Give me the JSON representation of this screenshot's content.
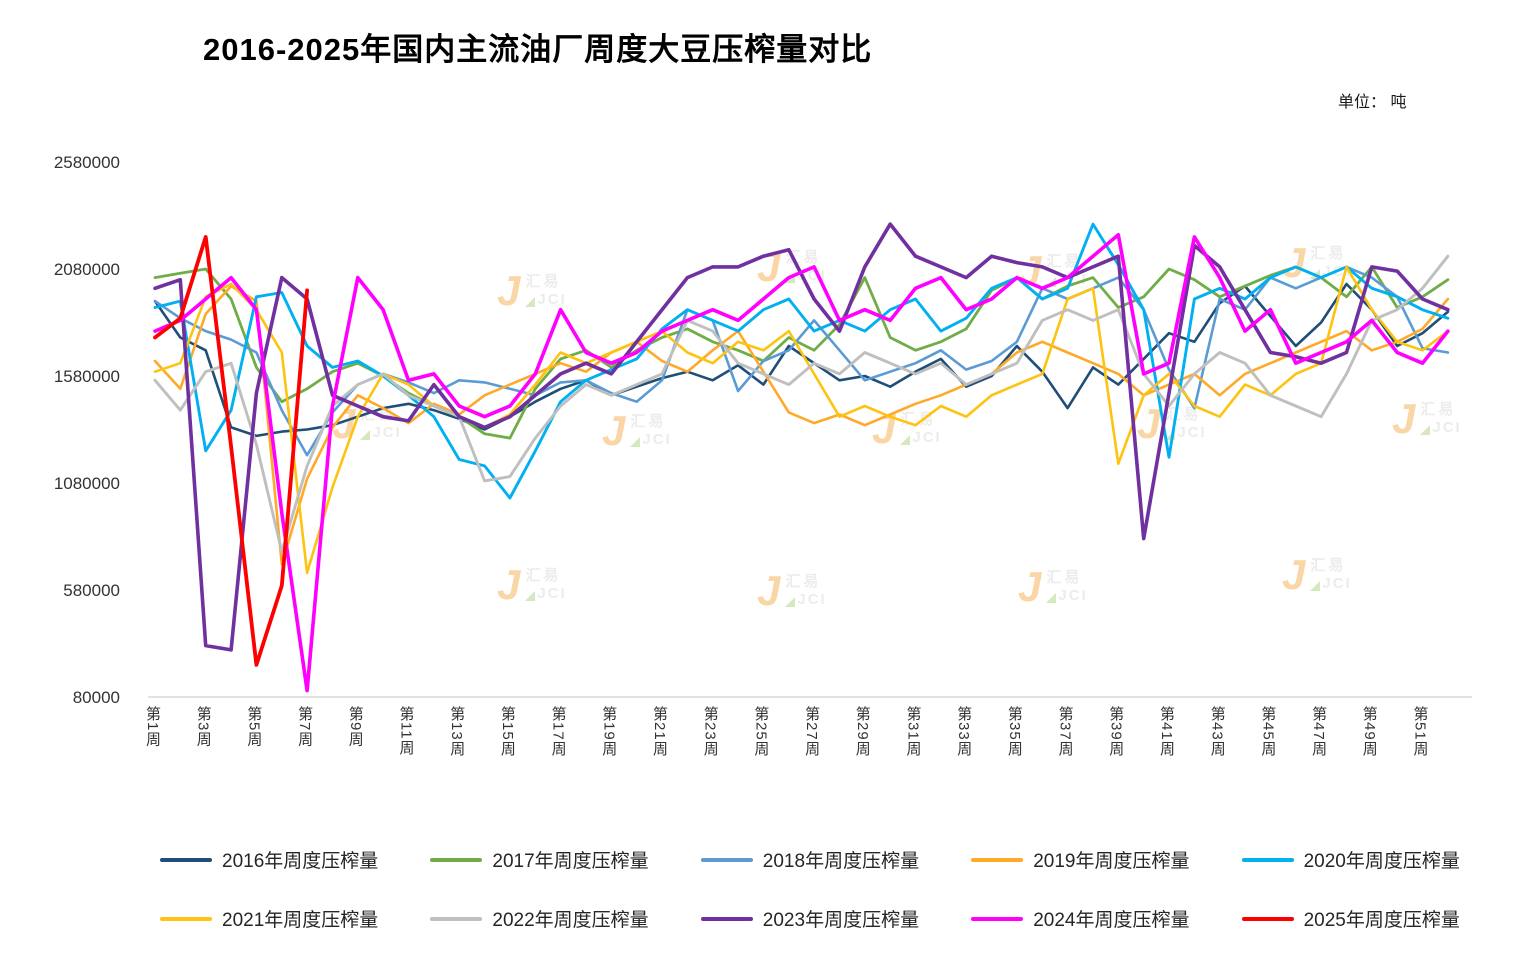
{
  "title": "2016-2025年国内主流油厂周度大豆压榨量对比",
  "unit_label": "单位： 吨",
  "watermark": {
    "logo": "J",
    "text_cn": "汇易",
    "text_en": "JCI"
  },
  "chart_data": {
    "type": "line",
    "title": "2016-2025年国内主流油厂周度大豆压榨量对比",
    "ylabel": "吨",
    "ylim": [
      80000,
      2580000
    ],
    "y_ticks": [
      2580000,
      2080000,
      1580000,
      1080000,
      580000,
      80000
    ],
    "weeks_per_series": 52,
    "grid": false,
    "legend_position": "bottom",
    "x_tick_labels": [
      "第1周",
      "第3周",
      "第5周",
      "第7周",
      "第9周",
      "第11周",
      "第13周",
      "第15周",
      "第17周",
      "第19周",
      "第21周",
      "第23周",
      "第25周",
      "第27周",
      "第29周",
      "第31周",
      "第33周",
      "第35周",
      "第37周",
      "第39周",
      "第41周",
      "第43周",
      "第45周",
      "第47周",
      "第49周",
      "第51周"
    ],
    "series": [
      {
        "year": 2016,
        "name": "2016年周度压榨量",
        "color": "#1f4e79",
        "width": 2.6,
        "values": [
          1930000,
          1760000,
          1700000,
          1340000,
          1300000,
          1320000,
          1330000,
          1350000,
          1390000,
          1430000,
          1450000,
          1420000,
          1380000,
          1330000,
          1390000,
          1460000,
          1520000,
          1560000,
          1490000,
          1530000,
          1570000,
          1600000,
          1560000,
          1630000,
          1540000,
          1720000,
          1640000,
          1560000,
          1580000,
          1530000,
          1600000,
          1660000,
          1530000,
          1580000,
          1720000,
          1600000,
          1430000,
          1620000,
          1540000,
          1660000,
          1780000,
          1740000,
          1920000,
          2000000,
          1860000,
          1720000,
          1830000,
          2010000,
          1890000,
          1720000,
          1780000,
          1880000
        ]
      },
      {
        "year": 2017,
        "name": "2017年周度压榨量",
        "color": "#70ad47",
        "width": 2.8,
        "values": [
          2040000,
          2060000,
          2080000,
          1940000,
          1620000,
          1460000,
          1520000,
          1600000,
          1640000,
          1580000,
          1500000,
          1440000,
          1390000,
          1310000,
          1290000,
          1520000,
          1660000,
          1700000,
          1620000,
          1700000,
          1760000,
          1800000,
          1740000,
          1700000,
          1650000,
          1760000,
          1700000,
          1820000,
          2040000,
          1760000,
          1700000,
          1740000,
          1800000,
          1980000,
          2040000,
          1940000,
          2000000,
          2040000,
          1900000,
          1950000,
          2080000,
          2030000,
          1950000,
          2000000,
          2050000,
          2090000,
          2040000,
          1950000,
          2090000,
          1900000,
          1950000,
          2030000
        ]
      },
      {
        "year": 2018,
        "name": "2018年周度压榨量",
        "color": "#5b9bd5",
        "width": 2.6,
        "values": [
          1930000,
          1850000,
          1790000,
          1750000,
          1690000,
          1420000,
          1210000,
          1410000,
          1540000,
          1590000,
          1550000,
          1500000,
          1560000,
          1550000,
          1520000,
          1490000,
          1550000,
          1560000,
          1500000,
          1460000,
          1560000,
          1890000,
          1840000,
          1510000,
          1650000,
          1700000,
          1840000,
          1700000,
          1560000,
          1600000,
          1640000,
          1700000,
          1610000,
          1650000,
          1740000,
          1990000,
          1940000,
          1990000,
          2040000,
          1890000,
          1610000,
          1430000,
          1940000,
          1890000,
          2040000,
          1990000,
          2040000,
          2090000,
          2040000,
          1950000,
          1710000,
          1690000
        ]
      },
      {
        "year": 2019,
        "name": "2019年周度压榨量",
        "color": "#ffa929",
        "width": 2.6,
        "values": [
          1650000,
          1520000,
          1870000,
          2000000,
          1930000,
          700000,
          1100000,
          1340000,
          1490000,
          1430000,
          1360000,
          1450000,
          1400000,
          1490000,
          1540000,
          1590000,
          1640000,
          1600000,
          1690000,
          1740000,
          1650000,
          1600000,
          1700000,
          1790000,
          1600000,
          1410000,
          1360000,
          1400000,
          1350000,
          1400000,
          1450000,
          1490000,
          1540000,
          1590000,
          1690000,
          1740000,
          1690000,
          1640000,
          1590000,
          1490000,
          1540000,
          1590000,
          1490000,
          1590000,
          1640000,
          1690000,
          1740000,
          1790000,
          1700000,
          1740000,
          1800000,
          1940000
        ]
      },
      {
        "year": 2020,
        "name": "2020年周度压榨量",
        "color": "#00b0f0",
        "width": 2.9,
        "values": [
          1900000,
          1930000,
          1230000,
          1420000,
          1950000,
          1970000,
          1720000,
          1620000,
          1650000,
          1580000,
          1490000,
          1390000,
          1190000,
          1160000,
          1010000,
          1230000,
          1460000,
          1560000,
          1610000,
          1660000,
          1800000,
          1890000,
          1840000,
          1790000,
          1890000,
          1940000,
          1790000,
          1840000,
          1790000,
          1890000,
          1940000,
          1790000,
          1850000,
          1990000,
          2040000,
          1940000,
          1990000,
          2290000,
          2100000,
          1890000,
          1200000,
          1940000,
          1990000,
          1940000,
          2040000,
          2090000,
          2040000,
          2090000,
          1990000,
          1950000,
          1890000,
          1850000
        ]
      },
      {
        "year": 2021,
        "name": "2021年周度压榨量",
        "color": "#fec310",
        "width": 2.6,
        "values": [
          1600000,
          1640000,
          1950000,
          2010000,
          1890000,
          1690000,
          660000,
          1060000,
          1390000,
          1590000,
          1540000,
          1440000,
          1390000,
          1340000,
          1400000,
          1540000,
          1690000,
          1640000,
          1690000,
          1740000,
          1790000,
          1690000,
          1640000,
          1740000,
          1700000,
          1790000,
          1590000,
          1390000,
          1440000,
          1390000,
          1350000,
          1440000,
          1390000,
          1490000,
          1540000,
          1590000,
          1940000,
          1990000,
          1170000,
          1490000,
          1590000,
          1440000,
          1390000,
          1540000,
          1490000,
          1590000,
          1640000,
          2090000,
          1890000,
          1740000,
          1700000,
          1790000
        ]
      },
      {
        "year": 2022,
        "name": "2022年周度压榨量",
        "color": "#bfbfbf",
        "width": 2.9,
        "values": [
          1560000,
          1420000,
          1600000,
          1640000,
          1260000,
          760000,
          1160000,
          1440000,
          1540000,
          1590000,
          1490000,
          1440000,
          1390000,
          1090000,
          1110000,
          1290000,
          1440000,
          1540000,
          1490000,
          1540000,
          1590000,
          1840000,
          1790000,
          1640000,
          1590000,
          1540000,
          1640000,
          1590000,
          1690000,
          1640000,
          1590000,
          1640000,
          1540000,
          1590000,
          1640000,
          1840000,
          1890000,
          1840000,
          1890000,
          1590000,
          1440000,
          1590000,
          1690000,
          1640000,
          1490000,
          1440000,
          1390000,
          1590000,
          1840000,
          1890000,
          1990000,
          2140000
        ]
      },
      {
        "year": 2023,
        "name": "2023年周度压榨量",
        "color": "#7030a0",
        "width": 3.6,
        "values": [
          1990000,
          2030000,
          320000,
          300000,
          1500000,
          2040000,
          1940000,
          1490000,
          1440000,
          1390000,
          1370000,
          1540000,
          1390000,
          1340000,
          1390000,
          1490000,
          1590000,
          1640000,
          1590000,
          1740000,
          1890000,
          2040000,
          2090000,
          2090000,
          2140000,
          2170000,
          1940000,
          1790000,
          2090000,
          2290000,
          2140000,
          2090000,
          2040000,
          2140000,
          2110000,
          2090000,
          2040000,
          2090000,
          2140000,
          820000,
          1500000,
          2190000,
          2090000,
          1890000,
          1690000,
          1670000,
          1640000,
          1690000,
          2090000,
          2070000,
          1940000,
          1890000
        ]
      },
      {
        "year": 2024,
        "name": "2024年周度压榨量",
        "color": "#ff00ff",
        "width": 3.6,
        "values": [
          1790000,
          1840000,
          1940000,
          2040000,
          1890000,
          940000,
          110000,
          1440000,
          2040000,
          1890000,
          1560000,
          1590000,
          1440000,
          1390000,
          1440000,
          1590000,
          1890000,
          1690000,
          1640000,
          1690000,
          1790000,
          1840000,
          1890000,
          1840000,
          1940000,
          2040000,
          2090000,
          1840000,
          1890000,
          1840000,
          1990000,
          2040000,
          1890000,
          1940000,
          2040000,
          1990000,
          2040000,
          2140000,
          2240000,
          1590000,
          1640000,
          2230000,
          2040000,
          1790000,
          1890000,
          1640000,
          1690000,
          1740000,
          1840000,
          1690000,
          1640000,
          1790000
        ]
      },
      {
        "year": 2025,
        "name": "2025年周度压榨量",
        "color": "#fe0000",
        "width": 3.8,
        "values": [
          1760000,
          1850000,
          2230000,
          1250000,
          230000,
          600000,
          1980000
        ]
      }
    ]
  }
}
